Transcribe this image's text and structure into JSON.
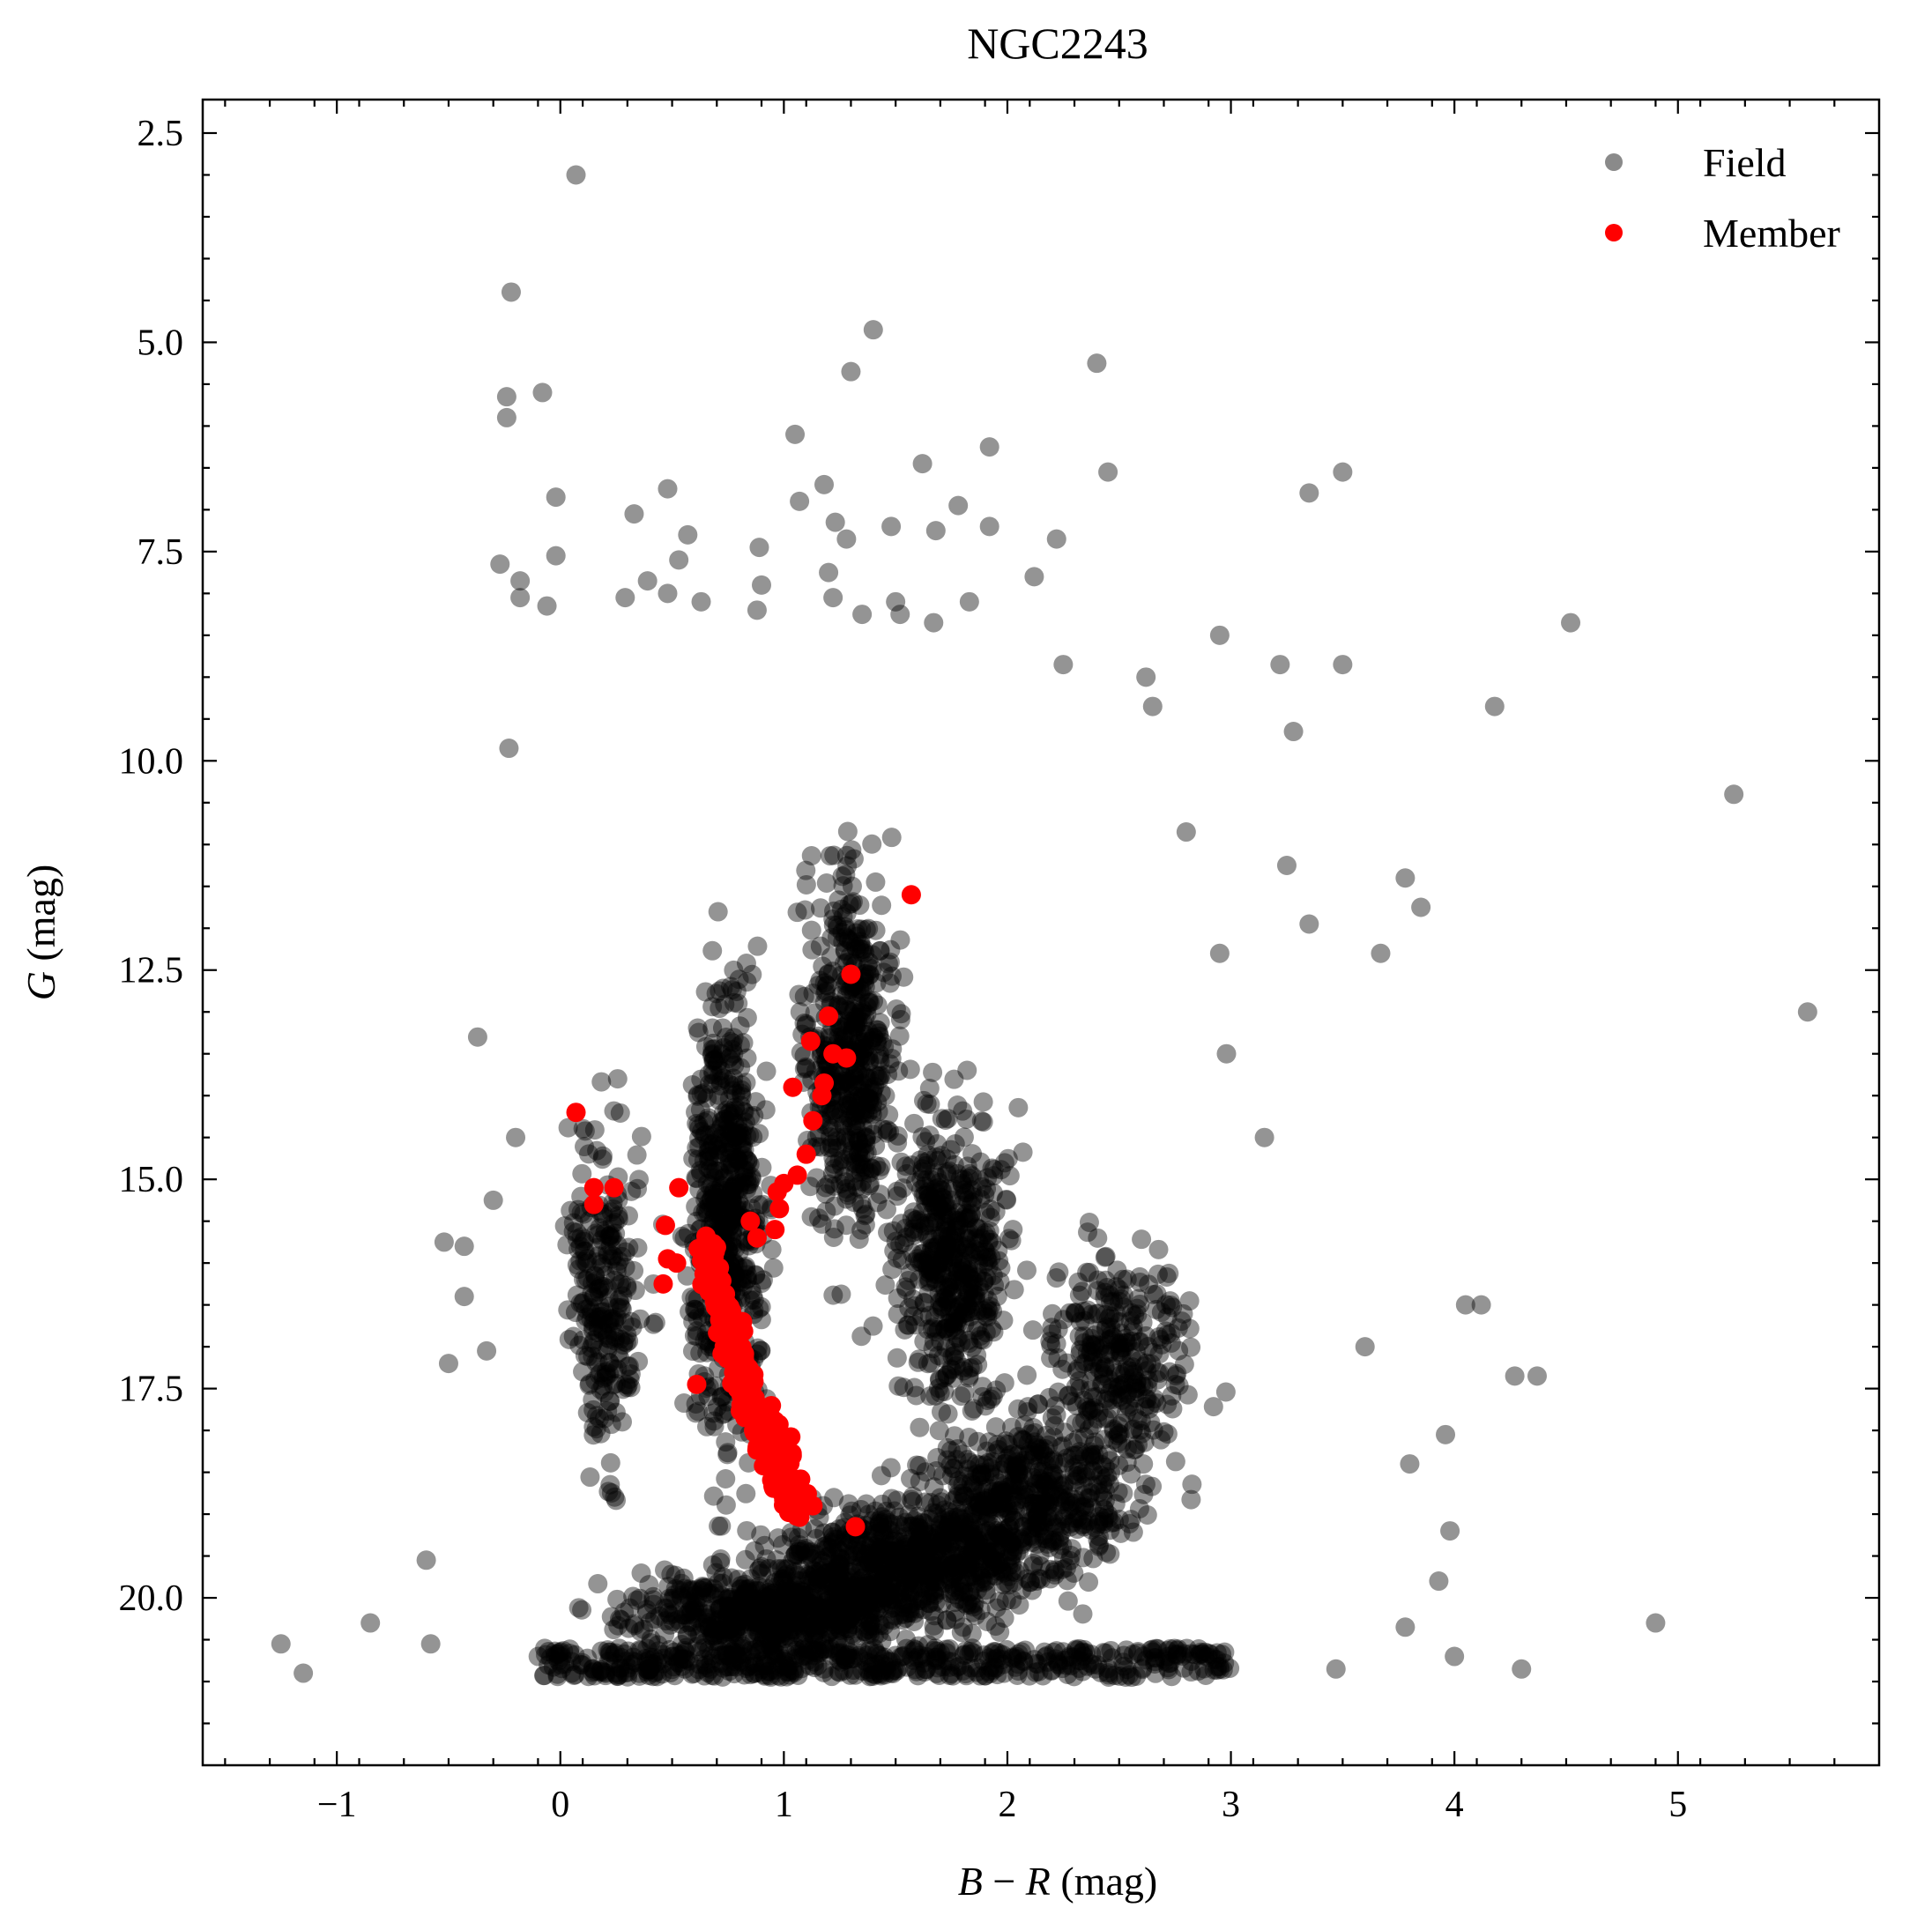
{
  "chart_data": {
    "type": "scatter",
    "title": "NGC2243",
    "xlabel_var": "B",
    "xlabel_op": " − ",
    "xlabel_var2": "R",
    "xlabel_unit": " (mag)",
    "ylabel_var": "G",
    "ylabel_unit": " (mag)",
    "xlim": [
      -1.6,
      5.9
    ],
    "ylim": [
      22.0,
      2.1
    ],
    "y_inverted": true,
    "grid": false,
    "legend_position": "top-right",
    "x_ticks": [
      {
        "value": -1,
        "label": "−1"
      },
      {
        "value": 0,
        "label": "0"
      },
      {
        "value": 1,
        "label": "1"
      },
      {
        "value": 2,
        "label": "2"
      },
      {
        "value": 3,
        "label": "3"
      },
      {
        "value": 4,
        "label": "4"
      },
      {
        "value": 5,
        "label": "5"
      }
    ],
    "y_ticks": [
      {
        "value": 2.5,
        "label": "2.5"
      },
      {
        "value": 5.0,
        "label": "5.0"
      },
      {
        "value": 7.5,
        "label": "7.5"
      },
      {
        "value": 10.0,
        "label": "10.0"
      },
      {
        "value": 12.5,
        "label": "12.5"
      },
      {
        "value": 15.0,
        "label": "15.0"
      },
      {
        "value": 17.5,
        "label": "17.5"
      },
      {
        "value": 20.0,
        "label": "20.0"
      }
    ],
    "series": [
      {
        "name": "Field",
        "color": "#000000",
        "opacity": 0.42,
        "legend_color": "#8a8a8a",
        "dense_regions": [
          {
            "x": 0.95,
            "y": 20.2,
            "sx": 0.75,
            "sy": 0.6,
            "n": 600
          },
          {
            "x": 1.55,
            "y": 19.6,
            "sx": 0.75,
            "sy": 0.9,
            "n": 700
          },
          {
            "x": 2.1,
            "y": 18.8,
            "sx": 0.55,
            "sy": 1.1,
            "n": 500
          },
          {
            "x": 0.75,
            "y": 15.5,
            "sx": 0.18,
            "sy": 3.2,
            "n": 600
          },
          {
            "x": 1.3,
            "y": 13.5,
            "sx": 0.22,
            "sy": 2.5,
            "n": 500
          },
          {
            "x": 1.75,
            "y": 16.0,
            "sx": 0.3,
            "sy": 2.0,
            "n": 500
          },
          {
            "x": 0.2,
            "y": 16.5,
            "sx": 0.2,
            "sy": 2.4,
            "n": 250
          },
          {
            "x": 2.5,
            "y": 17.2,
            "sx": 0.35,
            "sy": 1.5,
            "n": 300
          }
        ],
        "values": [
          {
            "x": 0.07,
            "y": 3.0
          },
          {
            "x": -0.22,
            "y": 4.4
          },
          {
            "x": 1.4,
            "y": 4.85
          },
          {
            "x": 2.4,
            "y": 5.25
          },
          {
            "x": 1.3,
            "y": 5.35
          },
          {
            "x": -0.24,
            "y": 5.65
          },
          {
            "x": -0.08,
            "y": 5.6
          },
          {
            "x": -0.24,
            "y": 5.9
          },
          {
            "x": 1.05,
            "y": 6.1
          },
          {
            "x": 1.92,
            "y": 6.25
          },
          {
            "x": 1.62,
            "y": 6.45
          },
          {
            "x": 2.45,
            "y": 6.55
          },
          {
            "x": 3.5,
            "y": 6.55
          },
          {
            "x": 1.18,
            "y": 6.7
          },
          {
            "x": 3.35,
            "y": 6.8
          },
          {
            "x": 0.48,
            "y": 6.75
          },
          {
            "x": 1.07,
            "y": 6.9
          },
          {
            "x": -0.02,
            "y": 6.85
          },
          {
            "x": 0.33,
            "y": 7.05
          },
          {
            "x": 1.78,
            "y": 6.95
          },
          {
            "x": 1.48,
            "y": 7.2
          },
          {
            "x": 1.23,
            "y": 7.15
          },
          {
            "x": 1.92,
            "y": 7.2
          },
          {
            "x": 1.68,
            "y": 7.25
          },
          {
            "x": 0.57,
            "y": 7.3
          },
          {
            "x": 1.28,
            "y": 7.35
          },
          {
            "x": 2.22,
            "y": 7.35
          },
          {
            "x": 0.89,
            "y": 7.45
          },
          {
            "x": -0.02,
            "y": 7.55
          },
          {
            "x": 0.53,
            "y": 7.6
          },
          {
            "x": -0.27,
            "y": 7.65
          },
          {
            "x": 1.2,
            "y": 7.75
          },
          {
            "x": 2.12,
            "y": 7.8
          },
          {
            "x": -0.18,
            "y": 7.85
          },
          {
            "x": 0.39,
            "y": 7.85
          },
          {
            "x": 0.9,
            "y": 7.9
          },
          {
            "x": 0.48,
            "y": 8.0
          },
          {
            "x": 0.29,
            "y": 8.05
          },
          {
            "x": 1.22,
            "y": 8.05
          },
          {
            "x": -0.18,
            "y": 8.05
          },
          {
            "x": 1.5,
            "y": 8.1
          },
          {
            "x": 0.63,
            "y": 8.1
          },
          {
            "x": 1.83,
            "y": 8.1
          },
          {
            "x": -0.06,
            "y": 8.15
          },
          {
            "x": 0.88,
            "y": 8.2
          },
          {
            "x": 1.52,
            "y": 8.25
          },
          {
            "x": 1.35,
            "y": 8.25
          },
          {
            "x": 4.52,
            "y": 8.35
          },
          {
            "x": 1.67,
            "y": 8.35
          },
          {
            "x": 2.95,
            "y": 8.5
          },
          {
            "x": 3.22,
            "y": 8.85
          },
          {
            "x": 3.5,
            "y": 8.85
          },
          {
            "x": 2.25,
            "y": 8.85
          },
          {
            "x": 2.62,
            "y": 9.0
          },
          {
            "x": 4.18,
            "y": 9.35
          },
          {
            "x": 2.65,
            "y": 9.35
          },
          {
            "x": 3.28,
            "y": 9.65
          },
          {
            "x": -0.23,
            "y": 9.85
          },
          {
            "x": 5.25,
            "y": 10.4
          },
          {
            "x": 2.8,
            "y": 10.85
          },
          {
            "x": 3.25,
            "y": 11.25
          },
          {
            "x": 3.78,
            "y": 11.4
          },
          {
            "x": 3.85,
            "y": 11.75
          },
          {
            "x": 3.35,
            "y": 11.95
          },
          {
            "x": 3.67,
            "y": 12.3
          },
          {
            "x": 2.95,
            "y": 12.3
          },
          {
            "x": 5.58,
            "y": 13.0
          },
          {
            "x": -0.37,
            "y": 13.3
          },
          {
            "x": 2.98,
            "y": 13.5
          },
          {
            "x": 3.15,
            "y": 14.5
          },
          {
            "x": -0.2,
            "y": 14.5
          },
          {
            "x": -0.3,
            "y": 15.25
          },
          {
            "x": -0.52,
            "y": 15.75
          },
          {
            "x": -0.43,
            "y": 15.8
          },
          {
            "x": -0.43,
            "y": 16.4
          },
          {
            "x": 4.05,
            "y": 16.5
          },
          {
            "x": 4.12,
            "y": 16.5
          },
          {
            "x": -0.33,
            "y": 17.05
          },
          {
            "x": -0.5,
            "y": 17.2
          },
          {
            "x": 4.27,
            "y": 17.35
          },
          {
            "x": 4.37,
            "y": 17.35
          },
          {
            "x": 3.6,
            "y": 17.0
          },
          {
            "x": 3.96,
            "y": 18.05
          },
          {
            "x": 3.8,
            "y": 18.4
          },
          {
            "x": 3.98,
            "y": 19.2
          },
          {
            "x": -0.6,
            "y": 19.55
          },
          {
            "x": 3.93,
            "y": 19.8
          },
          {
            "x": 3.78,
            "y": 20.35
          },
          {
            "x": -1.25,
            "y": 20.55
          },
          {
            "x": -0.85,
            "y": 20.3
          },
          {
            "x": 4.9,
            "y": 20.3
          },
          {
            "x": -1.15,
            "y": 20.9
          },
          {
            "x": 4.0,
            "y": 20.7
          },
          {
            "x": 4.3,
            "y": 20.85
          },
          {
            "x": -0.58,
            "y": 20.55
          },
          {
            "x": 3.47,
            "y": 20.85
          }
        ]
      },
      {
        "name": "Member",
        "color": "#ff0000",
        "opacity": 1,
        "legend_color": "#ff0000",
        "values": [
          {
            "x": 1.57,
            "y": 11.6
          },
          {
            "x": 1.3,
            "y": 12.55
          },
          {
            "x": 1.2,
            "y": 13.05
          },
          {
            "x": 1.12,
            "y": 13.35
          },
          {
            "x": 1.22,
            "y": 13.5
          },
          {
            "x": 1.28,
            "y": 13.55
          },
          {
            "x": 1.04,
            "y": 13.9
          },
          {
            "x": 1.18,
            "y": 13.85
          },
          {
            "x": 1.17,
            "y": 14.0
          },
          {
            "x": 1.13,
            "y": 14.3
          },
          {
            "x": 0.07,
            "y": 14.2
          },
          {
            "x": 1.1,
            "y": 14.7
          },
          {
            "x": 1.06,
            "y": 14.95
          },
          {
            "x": 1.0,
            "y": 15.05
          },
          {
            "x": 0.97,
            "y": 15.15
          },
          {
            "x": 0.15,
            "y": 15.1
          },
          {
            "x": 0.24,
            "y": 15.1
          },
          {
            "x": 0.15,
            "y": 15.3
          },
          {
            "x": 0.53,
            "y": 15.1
          },
          {
            "x": 0.98,
            "y": 15.35
          },
          {
            "x": 0.96,
            "y": 15.6
          },
          {
            "x": 0.88,
            "y": 15.7
          },
          {
            "x": 0.85,
            "y": 15.5
          },
          {
            "x": 0.47,
            "y": 15.55
          },
          {
            "x": 0.48,
            "y": 15.95
          },
          {
            "x": 0.52,
            "y": 16.0
          },
          {
            "x": 0.46,
            "y": 16.25
          },
          {
            "x": 0.61,
            "y": 17.45
          },
          {
            "x": 1.13,
            "y": 18.9
          },
          {
            "x": 1.32,
            "y": 19.15
          }
        ],
        "clusters": [
          {
            "x0": 0.66,
            "y0": 15.8,
            "x1": 1.02,
            "y1": 19.0,
            "spread": 0.05,
            "n": 360
          }
        ]
      }
    ]
  }
}
